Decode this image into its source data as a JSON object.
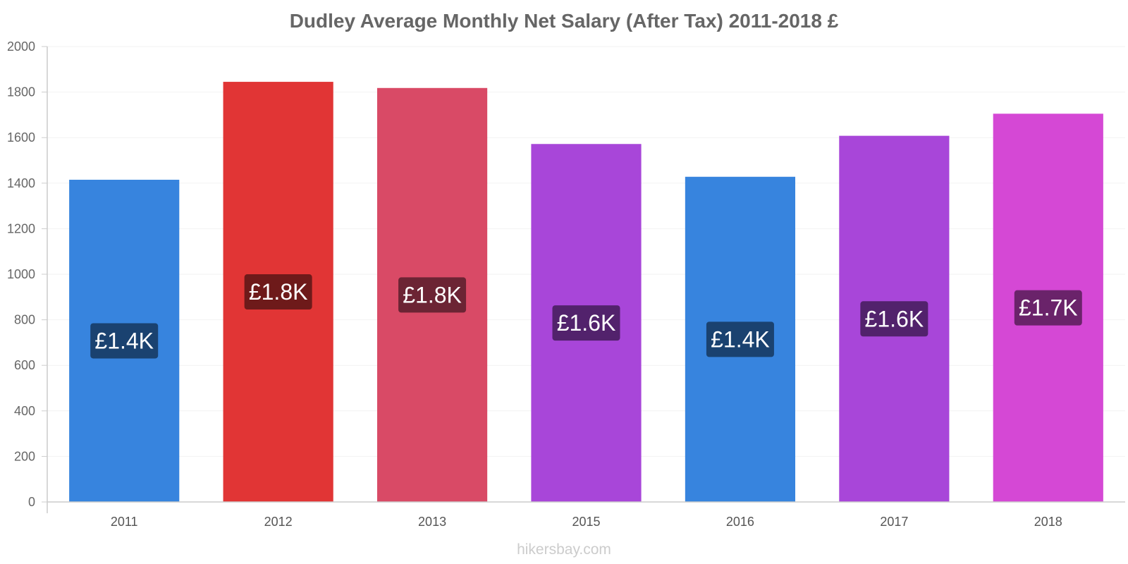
{
  "chart_data": {
    "type": "bar",
    "title": "Dudley Average Monthly Net Salary (After Tax) 2011-2018 £",
    "categories": [
      "2011",
      "2012",
      "2013",
      "2015",
      "2016",
      "2017",
      "2018"
    ],
    "values": [
      1415,
      1845,
      1818,
      1572,
      1428,
      1608,
      1705
    ],
    "data_labels": [
      "£1.4K",
      "£1.8K",
      "£1.8K",
      "£1.6K",
      "£1.4K",
      "£1.6K",
      "£1.7K"
    ],
    "bar_colors": [
      "#3784de",
      "#e13535",
      "#d94a66",
      "#a846d9",
      "#3784de",
      "#a846d9",
      "#d548d5"
    ],
    "label_colors": [
      "#1a4270",
      "#6e1a1a",
      "#6c2434",
      "#52226c",
      "#1a4270",
      "#52226c",
      "#6a236a"
    ],
    "ylim": [
      0,
      2000
    ],
    "yticks": [
      0,
      200,
      400,
      600,
      800,
      1000,
      1200,
      1400,
      1600,
      1800,
      2000
    ],
    "xlabel": "",
    "ylabel": "",
    "grid": true
  },
  "watermark": "hikersbay.com"
}
